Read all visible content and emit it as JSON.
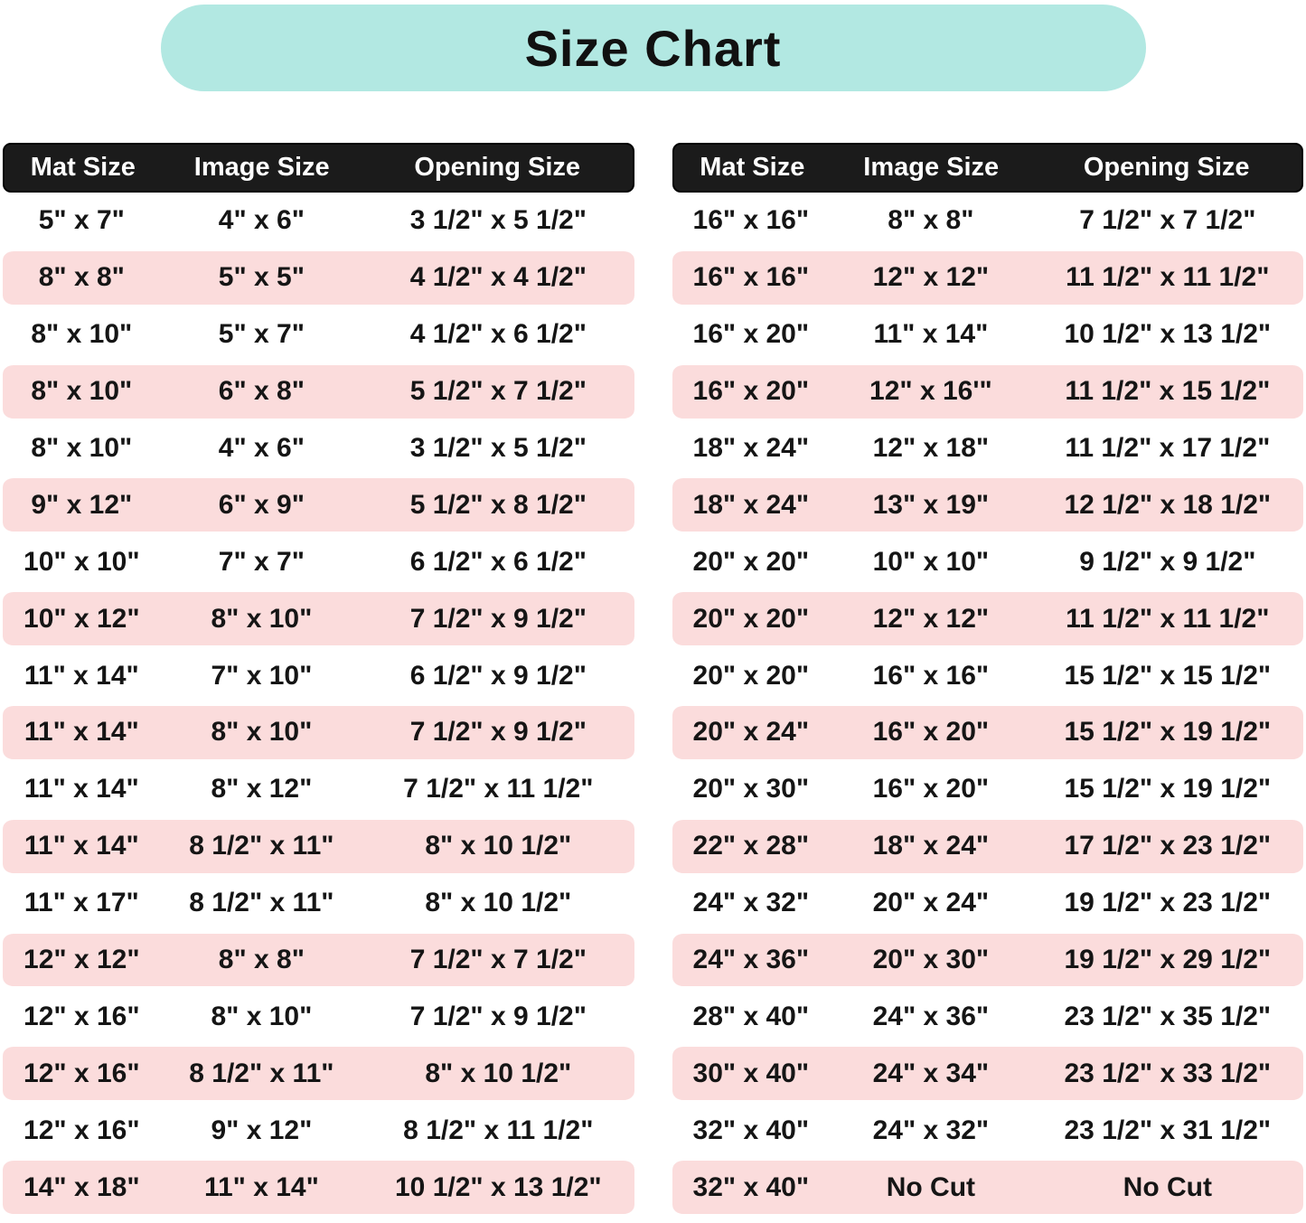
{
  "title": "Size Chart",
  "colors": {
    "title_background": "#b2e8e2",
    "header_background": "#1b1b1b",
    "header_text": "#ffffff",
    "stripe_pink": "#fbdcdc",
    "body_text": "#151515",
    "page_background": "#ffffff"
  },
  "chart_data": {
    "type": "table",
    "title": "Size Chart",
    "layout": "two side-by-side striped tables, alternating white/pink rows, black header bars",
    "tables": [
      {
        "name": "left",
        "columns": [
          "Mat Size",
          "Image Size",
          "Opening Size"
        ],
        "rows": [
          [
            "5\" x 7\"",
            "4\" x 6\"",
            "3 1/2\" x 5 1/2\""
          ],
          [
            "8\" x 8\"",
            "5\" x 5\"",
            "4 1/2\" x 4 1/2\""
          ],
          [
            "8\" x 10\"",
            "5\" x 7\"",
            "4 1/2\" x 6 1/2\""
          ],
          [
            "8\" x 10\"",
            "6\" x 8\"",
            "5 1/2\" x 7 1/2\""
          ],
          [
            "8\" x 10\"",
            "4\" x 6\"",
            "3 1/2\" x 5 1/2\""
          ],
          [
            "9\" x 12\"",
            "6\" x 9\"",
            "5 1/2\" x 8 1/2\""
          ],
          [
            "10\" x 10\"",
            "7\" x 7\"",
            "6 1/2\" x 6 1/2\""
          ],
          [
            "10\" x 12\"",
            "8\" x 10\"",
            "7 1/2\" x 9 1/2\""
          ],
          [
            "11\" x 14\"",
            "7\" x 10\"",
            "6 1/2\" x 9 1/2\""
          ],
          [
            "11\" x 14\"",
            "8\" x 10\"",
            "7 1/2\" x 9 1/2\""
          ],
          [
            "11\" x 14\"",
            "8\" x 12\"",
            "7 1/2\" x 11 1/2\""
          ],
          [
            "11\" x 14\"",
            "8 1/2\" x 11\"",
            "8\" x 10 1/2\""
          ],
          [
            "11\" x 17\"",
            "8 1/2\" x 11\"",
            "8\" x 10 1/2\""
          ],
          [
            "12\" x 12\"",
            "8\" x 8\"",
            "7 1/2\" x 7 1/2\""
          ],
          [
            "12\" x 16\"",
            "8\" x 10\"",
            "7 1/2\" x 9 1/2\""
          ],
          [
            "12\" x 16\"",
            "8 1/2\" x 11\"",
            "8\" x 10 1/2\""
          ],
          [
            "12\" x 16\"",
            "9\" x 12\"",
            "8 1/2\" x 11 1/2\""
          ],
          [
            "14\" x 18\"",
            "11\" x 14\"",
            "10 1/2\" x 13 1/2\""
          ]
        ]
      },
      {
        "name": "right",
        "columns": [
          "Mat Size",
          "Image Size",
          "Opening Size"
        ],
        "rows": [
          [
            "16\" x 16\"",
            "8\" x 8\"",
            "7 1/2\" x 7 1/2\""
          ],
          [
            "16\" x 16\"",
            "12\" x 12\"",
            "11 1/2\" x 11 1/2\""
          ],
          [
            "16\" x 20\"",
            "11\" x 14\"",
            "10 1/2\" x 13 1/2\""
          ],
          [
            "16\" x 20\"",
            "12\" x 16'\"",
            "11 1/2\" x 15 1/2\""
          ],
          [
            "18\" x 24\"",
            "12\" x 18\"",
            "11 1/2\" x 17 1/2\""
          ],
          [
            "18\" x 24\"",
            "13\" x 19\"",
            "12 1/2\" x 18 1/2\""
          ],
          [
            "20\" x 20\"",
            "10\" x 10\"",
            "9 1/2\" x 9 1/2\""
          ],
          [
            "20\" x 20\"",
            "12\" x 12\"",
            "11 1/2\" x 11 1/2\""
          ],
          [
            "20\" x 20\"",
            "16\" x 16\"",
            "15 1/2\" x 15 1/2\""
          ],
          [
            "20\" x 24\"",
            "16\" x 20\"",
            "15 1/2\" x 19 1/2\""
          ],
          [
            "20\" x 30\"",
            "16\" x 20\"",
            "15 1/2\" x 19 1/2\""
          ],
          [
            "22\" x 28\"",
            "18\" x 24\"",
            "17 1/2\" x 23 1/2\""
          ],
          [
            "24\" x 32\"",
            "20\" x 24\"",
            "19 1/2\" x 23 1/2\""
          ],
          [
            "24\" x 36\"",
            "20\" x 30\"",
            "19 1/2\" x 29 1/2\""
          ],
          [
            "28\" x 40\"",
            "24\" x 36\"",
            "23 1/2\" x 35 1/2\""
          ],
          [
            "30\" x 40\"",
            "24\" x 34\"",
            "23 1/2\" x 33 1/2\""
          ],
          [
            "32\" x 40\"",
            "24\" x 32\"",
            "23 1/2\" x 31 1/2\""
          ],
          [
            "32\" x 40\"",
            "No Cut",
            "No Cut"
          ]
        ]
      }
    ]
  }
}
